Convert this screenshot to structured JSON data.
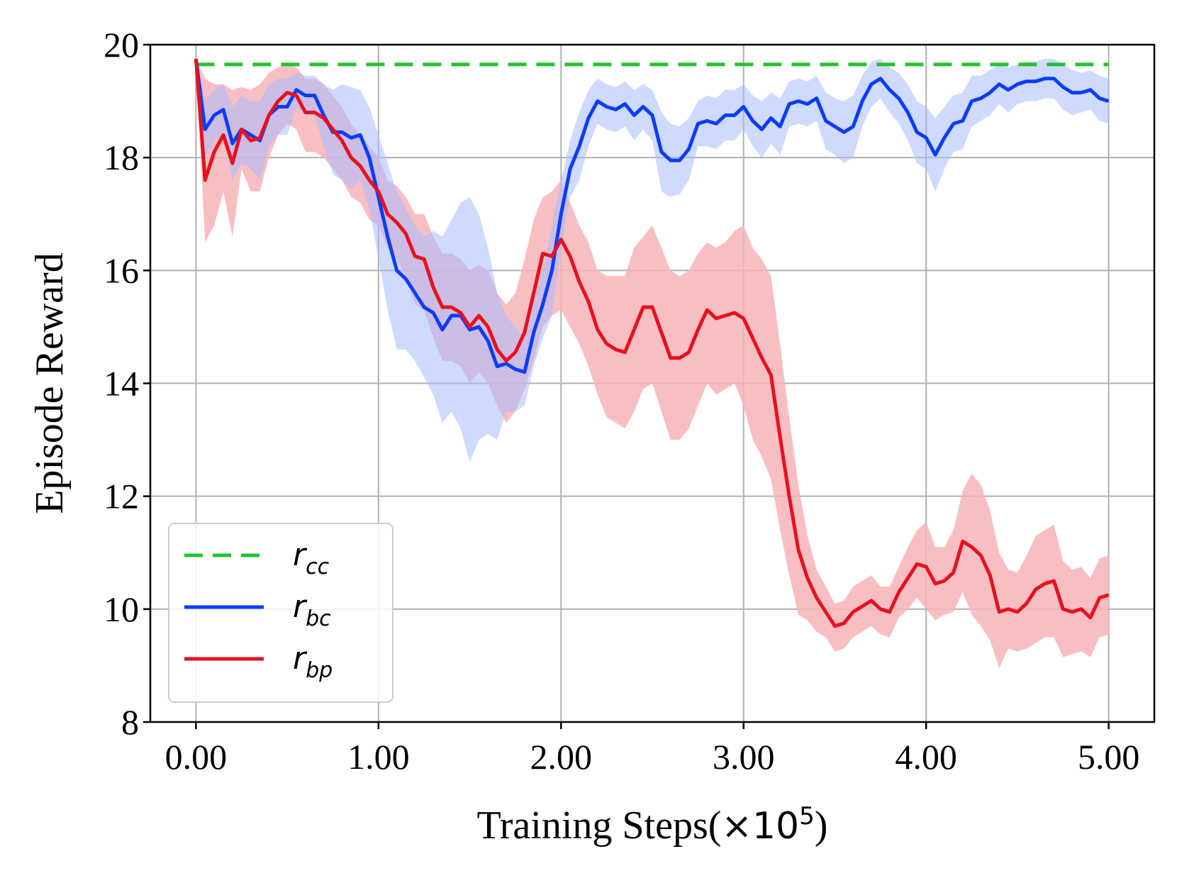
{
  "chart_data": {
    "type": "line",
    "title": "",
    "xlabel": "Training Steps(×10⁵)",
    "xlabel_main": "Training Steps(",
    "xlabel_mult": "×10",
    "xlabel_exp": "5",
    "xlabel_close": ")",
    "ylabel": "Episode Reward",
    "xlim": [
      -0.25,
      5.25
    ],
    "ylim": [
      8,
      20
    ],
    "xticks": [
      0,
      1,
      2,
      3,
      4,
      5
    ],
    "xtick_labels": [
      "0.00",
      "1.00",
      "2.00",
      "3.00",
      "4.00",
      "5.00"
    ],
    "yticks": [
      8,
      10,
      12,
      14,
      16,
      18,
      20
    ],
    "ytick_labels": [
      "8",
      "10",
      "12",
      "14",
      "16",
      "18",
      "20"
    ],
    "grid": true,
    "legend_position": "lower-left",
    "series": [
      {
        "name": "r_cc",
        "label_main": "r",
        "label_sub": "cc",
        "style": "dashed",
        "color": "#22c32e",
        "x": [
          0,
          5
        ],
        "y": [
          19.65,
          19.65
        ]
      },
      {
        "name": "r_bc",
        "label_main": "r",
        "label_sub": "bc",
        "style": "solid",
        "color": "#0a3cff",
        "band_color": "#a8bcff",
        "x": [
          0,
          0.05,
          0.1,
          0.15,
          0.2,
          0.25,
          0.3,
          0.35,
          0.4,
          0.45,
          0.5,
          0.55,
          0.6,
          0.65,
          0.7,
          0.75,
          0.8,
          0.85,
          0.9,
          0.95,
          1.0,
          1.05,
          1.1,
          1.15,
          1.2,
          1.25,
          1.3,
          1.35,
          1.4,
          1.45,
          1.5,
          1.55,
          1.6,
          1.65,
          1.7,
          1.75,
          1.8,
          1.85,
          1.9,
          1.95,
          2.0,
          2.05,
          2.1,
          2.15,
          2.2,
          2.25,
          2.3,
          2.35,
          2.4,
          2.45,
          2.5,
          2.55,
          2.6,
          2.65,
          2.7,
          2.75,
          2.8,
          2.85,
          2.9,
          2.95,
          3.0,
          3.05,
          3.1,
          3.15,
          3.2,
          3.25,
          3.3,
          3.35,
          3.4,
          3.45,
          3.5,
          3.55,
          3.6,
          3.65,
          3.7,
          3.75,
          3.8,
          3.85,
          3.9,
          3.95,
          4.0,
          4.05,
          4.1,
          4.15,
          4.2,
          4.25,
          4.3,
          4.35,
          4.4,
          4.45,
          4.5,
          4.55,
          4.6,
          4.65,
          4.7,
          4.75,
          4.8,
          4.85,
          4.9,
          4.95,
          5.0
        ],
        "y": [
          19.75,
          18.5,
          18.75,
          18.85,
          18.25,
          18.5,
          18.4,
          18.3,
          18.75,
          18.9,
          18.9,
          19.2,
          19.1,
          19.1,
          18.75,
          18.45,
          18.45,
          18.35,
          18.4,
          18.0,
          17.3,
          16.6,
          16.0,
          15.85,
          15.6,
          15.35,
          15.25,
          14.95,
          15.2,
          15.2,
          14.95,
          15.0,
          14.75,
          14.3,
          14.35,
          14.25,
          14.2,
          14.9,
          15.4,
          16.0,
          17.0,
          17.8,
          18.2,
          18.7,
          19.0,
          18.9,
          18.85,
          18.95,
          18.75,
          18.9,
          18.75,
          18.1,
          17.95,
          17.95,
          18.15,
          18.6,
          18.65,
          18.6,
          18.75,
          18.75,
          18.9,
          18.65,
          18.5,
          18.7,
          18.55,
          18.95,
          19.0,
          18.95,
          19.05,
          18.65,
          18.55,
          18.45,
          18.55,
          19.0,
          19.3,
          19.4,
          19.2,
          19.05,
          18.8,
          18.45,
          18.35,
          18.05,
          18.35,
          18.6,
          18.65,
          19.0,
          19.05,
          19.15,
          19.3,
          19.2,
          19.3,
          19.35,
          19.35,
          19.4,
          19.4,
          19.25,
          19.15,
          19.15,
          19.2,
          19.05,
          19.0
        ],
        "y_upper": [
          19.75,
          19.0,
          19.2,
          19.3,
          18.9,
          19.1,
          19.0,
          19.0,
          19.3,
          19.4,
          19.4,
          19.5,
          19.45,
          19.45,
          19.3,
          19.2,
          19.3,
          19.25,
          19.2,
          18.9,
          18.4,
          17.9,
          17.4,
          17.1,
          16.8,
          16.6,
          16.7,
          16.6,
          16.9,
          17.2,
          17.3,
          17.0,
          16.4,
          15.6,
          15.2,
          15.0,
          14.8,
          15.5,
          16.0,
          16.8,
          17.6,
          18.3,
          18.8,
          19.2,
          19.4,
          19.3,
          19.25,
          19.35,
          19.2,
          19.3,
          19.2,
          18.8,
          18.6,
          18.55,
          18.7,
          19.0,
          19.1,
          19.05,
          19.2,
          19.2,
          19.3,
          19.1,
          19.0,
          19.15,
          19.05,
          19.35,
          19.4,
          19.35,
          19.45,
          19.15,
          19.05,
          19.0,
          19.1,
          19.45,
          19.7,
          19.75,
          19.6,
          19.5,
          19.3,
          19.0,
          18.9,
          18.7,
          18.9,
          19.1,
          19.15,
          19.45,
          19.45,
          19.55,
          19.65,
          19.6,
          19.65,
          19.7,
          19.7,
          19.75,
          19.75,
          19.65,
          19.55,
          19.5,
          19.55,
          19.45,
          19.4
        ],
        "y_lower": [
          19.75,
          18.0,
          18.3,
          18.4,
          17.6,
          17.9,
          17.8,
          17.6,
          18.2,
          18.4,
          18.4,
          18.9,
          18.75,
          18.75,
          18.2,
          17.7,
          17.6,
          17.45,
          17.6,
          17.1,
          16.2,
          15.3,
          14.6,
          14.6,
          14.4,
          14.1,
          13.8,
          13.3,
          13.5,
          13.2,
          12.6,
          13.0,
          13.1,
          13.0,
          13.5,
          13.5,
          13.6,
          14.3,
          14.8,
          15.2,
          16.4,
          17.3,
          17.6,
          18.2,
          18.6,
          18.5,
          18.45,
          18.55,
          18.3,
          18.5,
          18.3,
          17.4,
          17.3,
          17.35,
          17.6,
          18.2,
          18.2,
          18.15,
          18.3,
          18.3,
          18.5,
          18.2,
          18.0,
          18.25,
          18.05,
          18.55,
          18.6,
          18.55,
          18.65,
          18.15,
          18.05,
          17.9,
          18.0,
          18.55,
          18.9,
          19.05,
          18.8,
          18.6,
          18.3,
          17.9,
          17.8,
          17.4,
          17.8,
          18.1,
          18.15,
          18.55,
          18.65,
          18.75,
          18.95,
          18.8,
          18.95,
          19.0,
          19.0,
          19.05,
          19.05,
          18.85,
          18.75,
          18.8,
          18.85,
          18.65,
          18.6
        ]
      },
      {
        "name": "r_bp",
        "label_main": "r",
        "label_sub": "bp",
        "style": "solid",
        "color": "#e8101e",
        "band_color": "#f7b4b8",
        "x": [
          0,
          0.05,
          0.1,
          0.15,
          0.2,
          0.25,
          0.3,
          0.35,
          0.4,
          0.45,
          0.5,
          0.55,
          0.6,
          0.65,
          0.7,
          0.75,
          0.8,
          0.85,
          0.9,
          0.95,
          1.0,
          1.05,
          1.1,
          1.15,
          1.2,
          1.25,
          1.3,
          1.35,
          1.4,
          1.45,
          1.5,
          1.55,
          1.6,
          1.65,
          1.7,
          1.75,
          1.8,
          1.85,
          1.9,
          1.95,
          2.0,
          2.05,
          2.1,
          2.15,
          2.2,
          2.25,
          2.3,
          2.35,
          2.4,
          2.45,
          2.5,
          2.55,
          2.6,
          2.65,
          2.7,
          2.75,
          2.8,
          2.85,
          2.9,
          2.95,
          3.0,
          3.05,
          3.1,
          3.15,
          3.2,
          3.25,
          3.3,
          3.35,
          3.4,
          3.45,
          3.5,
          3.55,
          3.6,
          3.65,
          3.7,
          3.75,
          3.8,
          3.85,
          3.9,
          3.95,
          4.0,
          4.05,
          4.1,
          4.15,
          4.2,
          4.25,
          4.3,
          4.35,
          4.4,
          4.45,
          4.5,
          4.55,
          4.6,
          4.65,
          4.7,
          4.75,
          4.8,
          4.85,
          4.9,
          4.95,
          5.0
        ],
        "y": [
          19.75,
          17.6,
          18.1,
          18.4,
          17.9,
          18.5,
          18.3,
          18.35,
          18.75,
          19.0,
          19.15,
          19.1,
          18.8,
          18.8,
          18.7,
          18.5,
          18.3,
          18.0,
          17.85,
          17.6,
          17.4,
          17.0,
          16.85,
          16.65,
          16.25,
          16.2,
          15.7,
          15.35,
          15.35,
          15.25,
          15.0,
          15.2,
          15.0,
          14.6,
          14.4,
          14.55,
          14.9,
          15.6,
          16.3,
          16.25,
          16.55,
          16.25,
          15.8,
          15.45,
          14.95,
          14.7,
          14.6,
          14.55,
          14.95,
          15.35,
          15.35,
          14.9,
          14.45,
          14.45,
          14.55,
          14.95,
          15.3,
          15.15,
          15.2,
          15.25,
          15.15,
          14.8,
          14.45,
          14.15,
          13.05,
          12.0,
          11.05,
          10.55,
          10.2,
          9.95,
          9.7,
          9.75,
          9.95,
          10.05,
          10.15,
          10.0,
          9.95,
          10.3,
          10.55,
          10.8,
          10.75,
          10.45,
          10.5,
          10.65,
          11.2,
          11.1,
          10.95,
          10.6,
          9.95,
          10.0,
          9.95,
          10.1,
          10.35,
          10.45,
          10.5,
          10.0,
          9.95,
          10.0,
          9.85,
          10.2,
          10.25
        ],
        "y_upper": [
          19.75,
          19.4,
          19.3,
          19.3,
          19.2,
          19.25,
          19.2,
          19.3,
          19.5,
          19.6,
          19.65,
          19.6,
          19.4,
          19.4,
          19.3,
          19.1,
          18.9,
          18.6,
          18.4,
          18.2,
          18.0,
          17.6,
          17.5,
          17.3,
          17.0,
          17.0,
          16.6,
          16.3,
          16.3,
          16.2,
          16.0,
          16.1,
          16.0,
          15.6,
          15.4,
          15.6,
          16.2,
          16.9,
          17.3,
          17.4,
          17.6,
          17.2,
          16.8,
          16.5,
          16.0,
          15.9,
          15.9,
          15.9,
          16.4,
          16.6,
          16.8,
          16.4,
          16.0,
          15.9,
          16.0,
          16.3,
          16.5,
          16.4,
          16.5,
          16.7,
          16.8,
          16.4,
          16.2,
          15.9,
          14.7,
          13.4,
          12.2,
          11.3,
          10.7,
          10.4,
          10.1,
          10.15,
          10.4,
          10.5,
          10.6,
          10.4,
          10.4,
          10.75,
          11.1,
          11.4,
          11.55,
          11.1,
          11.1,
          11.4,
          12.1,
          12.4,
          12.2,
          11.75,
          11.0,
          10.7,
          10.65,
          10.95,
          11.3,
          11.4,
          11.5,
          10.85,
          10.7,
          10.75,
          10.55,
          10.9,
          10.95
        ],
        "y_lower": [
          19.75,
          16.5,
          16.8,
          17.4,
          16.6,
          17.8,
          17.4,
          17.4,
          18.0,
          18.4,
          18.6,
          18.5,
          18.1,
          18.1,
          18.0,
          17.8,
          17.6,
          17.3,
          17.2,
          16.9,
          16.8,
          16.4,
          16.2,
          15.9,
          15.4,
          15.3,
          14.8,
          14.4,
          14.4,
          14.3,
          14.0,
          14.2,
          14.0,
          13.6,
          13.3,
          13.5,
          13.9,
          14.4,
          15.0,
          15.2,
          15.3,
          15.0,
          14.7,
          14.3,
          13.8,
          13.4,
          13.3,
          13.2,
          13.5,
          13.9,
          14.0,
          13.5,
          13.0,
          13.0,
          13.2,
          13.6,
          14.0,
          13.8,
          13.9,
          14.0,
          13.6,
          13.0,
          12.7,
          12.3,
          11.4,
          10.6,
          9.9,
          9.8,
          9.6,
          9.5,
          9.25,
          9.3,
          9.5,
          9.6,
          9.7,
          9.55,
          9.5,
          9.85,
          10.0,
          10.2,
          10.0,
          9.8,
          9.9,
          9.95,
          10.3,
          9.9,
          9.7,
          9.45,
          8.95,
          9.3,
          9.25,
          9.3,
          9.4,
          9.5,
          9.5,
          9.15,
          9.2,
          9.25,
          9.15,
          9.5,
          9.55
        ]
      }
    ]
  }
}
